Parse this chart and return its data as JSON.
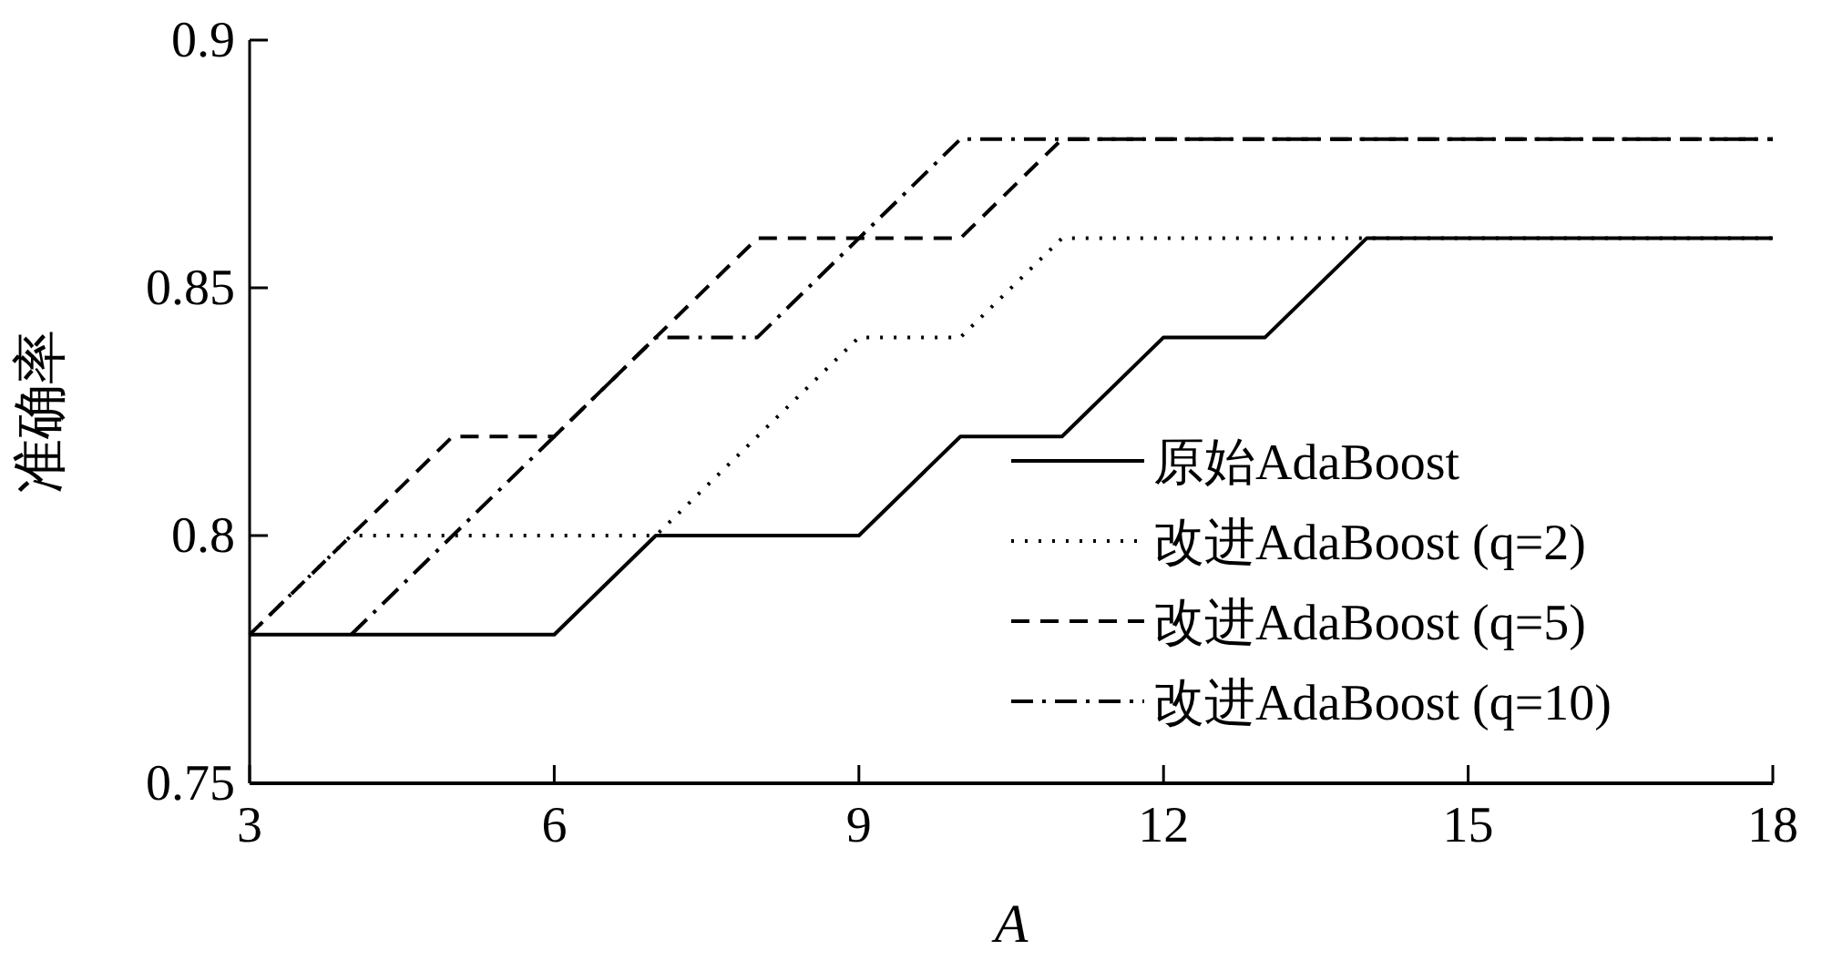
{
  "chart_data": {
    "type": "line",
    "xlabel": "A",
    "ylabel": "准确率",
    "x": [
      3,
      4,
      5,
      6,
      7,
      8,
      9,
      10,
      11,
      12,
      13,
      14,
      15,
      16,
      17,
      18
    ],
    "xlim": [
      3,
      18
    ],
    "xticks": [
      3,
      6,
      9,
      12,
      15,
      18
    ],
    "ylim": [
      0.75,
      0.9
    ],
    "yticks": [
      0.75,
      0.8,
      0.85,
      0.9
    ],
    "legend": "right",
    "grid": false,
    "series": [
      {
        "name": "原始AdaBoost",
        "color": "#000000",
        "line_style": "solid",
        "values": [
          0.78,
          0.78,
          0.78,
          0.78,
          0.8,
          0.8,
          0.8,
          0.82,
          0.82,
          0.84,
          0.84,
          0.86,
          0.86,
          0.86,
          0.86,
          0.86
        ]
      },
      {
        "name": "改进AdaBoost (q=2)",
        "color": "#000000",
        "line_style": "dotted",
        "values": [
          0.78,
          0.8,
          0.8,
          0.8,
          0.8,
          0.82,
          0.84,
          0.84,
          0.86,
          0.86,
          0.86,
          0.86,
          0.86,
          0.86,
          0.86,
          0.86
        ]
      },
      {
        "name": "改进AdaBoost (q=5)",
        "color": "#000000",
        "line_style": "dashed",
        "values": [
          0.78,
          0.8,
          0.82,
          0.82,
          0.84,
          0.86,
          0.86,
          0.86,
          0.88,
          0.88,
          0.88,
          0.88,
          0.88,
          0.88,
          0.88,
          0.88
        ]
      },
      {
        "name": "改进AdaBoost (q=10)",
        "color": "#000000",
        "line_style": "dashdot",
        "values": [
          null,
          0.78,
          0.8,
          0.82,
          0.84,
          0.84,
          0.86,
          0.88,
          0.88,
          0.88,
          0.88,
          0.88,
          0.88,
          0.88,
          0.88,
          0.88
        ]
      }
    ]
  }
}
